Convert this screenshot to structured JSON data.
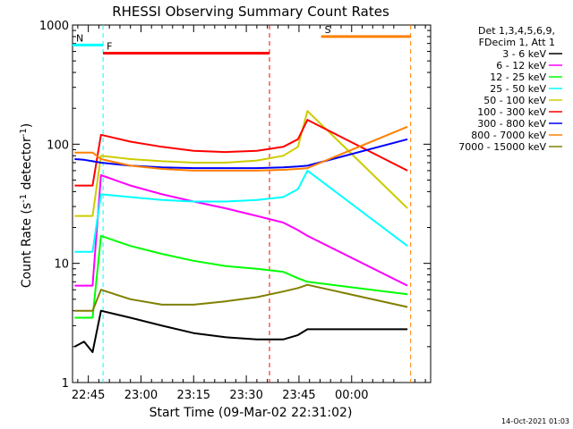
{
  "chart_data": {
    "type": "line",
    "title": "RHESSI Observing Summary Count Rates",
    "xlabel": "Start Time (09-Mar-02 22:31:02)",
    "ylabel_text": "Count Rate (s",
    "ylabel_sup": "-1",
    "ylabel_tail": " detector",
    "ylabel_close": ")",
    "yscale": "log",
    "ylim": [
      1,
      1000
    ],
    "y_ticks": [
      {
        "value": 1,
        "label": "1"
      },
      {
        "value": 10,
        "label": "10"
      },
      {
        "value": 100,
        "label": "100"
      },
      {
        "value": 1000,
        "label": "1000"
      }
    ],
    "xlim_minutes": [
      -16.5,
      17.5
    ],
    "x_ticks": [
      {
        "minute": -15,
        "label": "22:45"
      },
      {
        "minute": -10,
        "label": "23:00"
      },
      {
        "minute": -5,
        "label": "23:15"
      },
      {
        "minute": 0,
        "label": "23:30"
      },
      {
        "minute": 5,
        "label": "23:45"
      },
      {
        "minute": 10,
        "label": "00:00"
      }
    ],
    "legend_header": [
      "Det 1,3,4,5,6,9,",
      "FDecim 1, Att 1"
    ],
    "series": [
      {
        "name": "3 - 6 keV",
        "color": "#000000",
        "values": [
          2.0,
          2.2,
          1.8,
          4.0,
          3.5,
          3.0,
          2.6,
          2.4,
          2.3,
          2.3,
          2.5,
          2.8,
          2.8
        ]
      },
      {
        "name": "6 - 12 keV",
        "color": "#ff00ff",
        "values": [
          6.5,
          6.5,
          6.5,
          55,
          45,
          38,
          33,
          29,
          25,
          22,
          19,
          17,
          6.5
        ]
      },
      {
        "name": "12 - 25 keV",
        "color": "#00ff00",
        "values": [
          3.5,
          3.5,
          3.5,
          17,
          14,
          12,
          10.5,
          9.5,
          9.0,
          8.5,
          7.5,
          7.0,
          5.5
        ]
      },
      {
        "name": "25 - 50 keV",
        "color": "#00ffff",
        "values": [
          12.5,
          12.5,
          12.5,
          38,
          36,
          34,
          33,
          33,
          34,
          36,
          42,
          60,
          14
        ]
      },
      {
        "name": "50 - 100 keV",
        "color": "#cccc00",
        "values": [
          25,
          25,
          25,
          80,
          75,
          72,
          70,
          70,
          73,
          80,
          95,
          190,
          29
        ]
      },
      {
        "name": "100 - 300 keV",
        "color": "#ff0000",
        "values": [
          45,
          45,
          45,
          120,
          105,
          95,
          88,
          86,
          88,
          95,
          110,
          160,
          60
        ]
      },
      {
        "name": "300 - 800 keV",
        "color": "#0000ff",
        "values": [
          75,
          74,
          72,
          70,
          66,
          64,
          63,
          63,
          63,
          64,
          65,
          66,
          110
        ]
      },
      {
        "name": "800 - 7000 keV",
        "color": "#ff8000",
        "values": [
          85,
          85,
          85,
          75,
          66,
          62,
          60,
          60,
          60,
          61,
          62,
          63,
          140
        ]
      },
      {
        "name": "7000 - 15000 keV",
        "color": "#808000",
        "values": [
          4.0,
          4.0,
          4.0,
          6.0,
          5.0,
          4.5,
          4.5,
          4.8,
          5.2,
          5.8,
          6.2,
          6.6,
          4.3
        ]
      }
    ],
    "series_x_minutes": [
      -16.3,
      -15.4,
      -14.6,
      -13.8,
      -11.0,
      -8.0,
      -5.0,
      -2.0,
      1.0,
      3.5,
      4.9,
      5.8,
      15.3
    ],
    "annotations": [
      {
        "label": "N",
        "color": "#00ffff",
        "start_minute": -16.5,
        "end_minute": -13.6,
        "level": 680,
        "style": "bar"
      },
      {
        "label": "F",
        "color": "#ff0000",
        "start_minute": -13.6,
        "end_minute": 2.2,
        "level": 580,
        "style": "bar"
      },
      {
        "label": "S",
        "color": "#ff8000",
        "start_minute": 7.1,
        "end_minute": 15.6,
        "level": 800,
        "style": "bar"
      }
    ]
  },
  "footer_date": "14-Oct-2021 01:03"
}
